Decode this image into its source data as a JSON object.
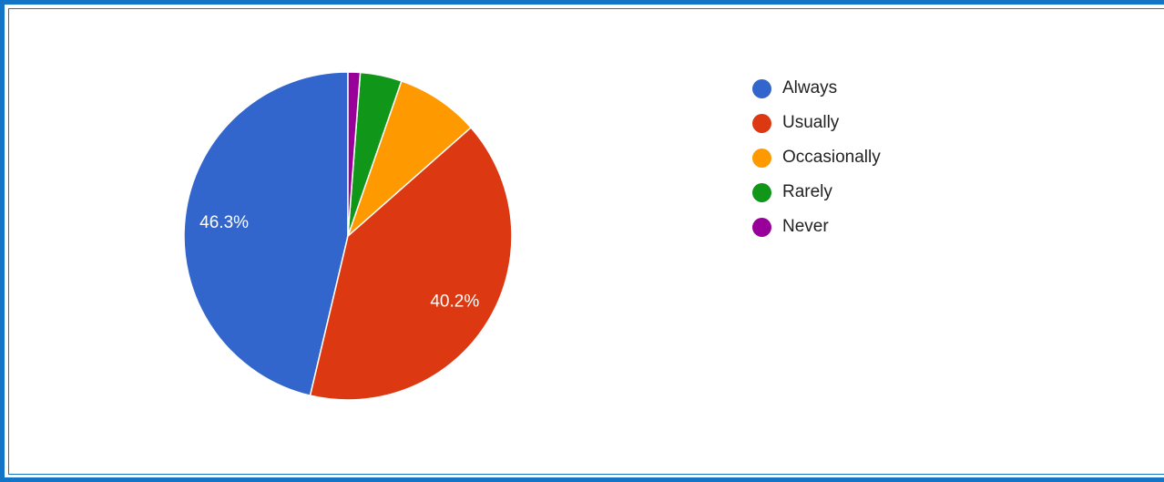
{
  "chart_data": {
    "type": "pie",
    "title": "",
    "categories": [
      "Always",
      "Usually",
      "Occasionally",
      "Rarely",
      "Never"
    ],
    "values": [
      46.3,
      40.2,
      8.2,
      4.1,
      1.2
    ],
    "labels_shown": [
      "46.3%",
      "40.2%",
      "",
      "",
      ""
    ],
    "colors": [
      "#3366cc",
      "#dc3912",
      "#ff9900",
      "#109618",
      "#990099"
    ],
    "start_angle_deg": 90,
    "direction": "counterclockwise",
    "legend_position": "right"
  }
}
